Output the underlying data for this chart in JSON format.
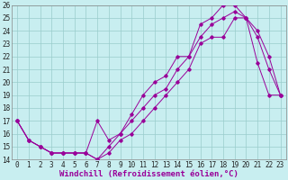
{
  "xlabel": "Windchill (Refroidissement éolien,°C)",
  "xlim": [
    -0.5,
    23.5
  ],
  "ylim": [
    14,
    26
  ],
  "xticks": [
    0,
    1,
    2,
    3,
    4,
    5,
    6,
    7,
    8,
    9,
    10,
    11,
    12,
    13,
    14,
    15,
    16,
    17,
    18,
    19,
    20,
    21,
    22,
    23
  ],
  "yticks": [
    14,
    15,
    16,
    17,
    18,
    19,
    20,
    21,
    22,
    23,
    24,
    25,
    26
  ],
  "background_color": "#c8eef0",
  "grid_color": "#99cccc",
  "line_color": "#990099",
  "line1_x": [
    0,
    1,
    2,
    3,
    4,
    5,
    6,
    7,
    8,
    9,
    10,
    11,
    12,
    13,
    14,
    15,
    16,
    17,
    18,
    19,
    20,
    21,
    22,
    23
  ],
  "line1_y": [
    17,
    15.5,
    15,
    14.5,
    14.5,
    14.5,
    14.5,
    14,
    14.5,
    15.5,
    16,
    17,
    18,
    19,
    20,
    21,
    23,
    23.5,
    23.5,
    25,
    25,
    21.5,
    19,
    19
  ],
  "line2_x": [
    0,
    1,
    2,
    3,
    4,
    5,
    6,
    7,
    8,
    9,
    10,
    11,
    12,
    13,
    14,
    15,
    16,
    17,
    18,
    19,
    20,
    21,
    22,
    23
  ],
  "line2_y": [
    17,
    15.5,
    15,
    14.5,
    14.5,
    14.5,
    14.5,
    17,
    15.5,
    16,
    17.5,
    19,
    20,
    20.5,
    22,
    22,
    24.5,
    25,
    26,
    26,
    25,
    23.5,
    21,
    19
  ],
  "line3_x": [
    0,
    1,
    2,
    3,
    4,
    5,
    6,
    7,
    8,
    9,
    10,
    11,
    12,
    13,
    14,
    15,
    16,
    17,
    18,
    19,
    20,
    21,
    22,
    23
  ],
  "line3_y": [
    17,
    15.5,
    15,
    14.5,
    14.5,
    14.5,
    14.5,
    14,
    15,
    16,
    17,
    18,
    19,
    19.5,
    21,
    22,
    23.5,
    24.5,
    25,
    25.5,
    25,
    24,
    22,
    19
  ],
  "tick_fontsize": 5.5,
  "xlabel_fontsize": 6.5,
  "marker": "D",
  "markersize": 1.8,
  "linewidth": 0.7
}
